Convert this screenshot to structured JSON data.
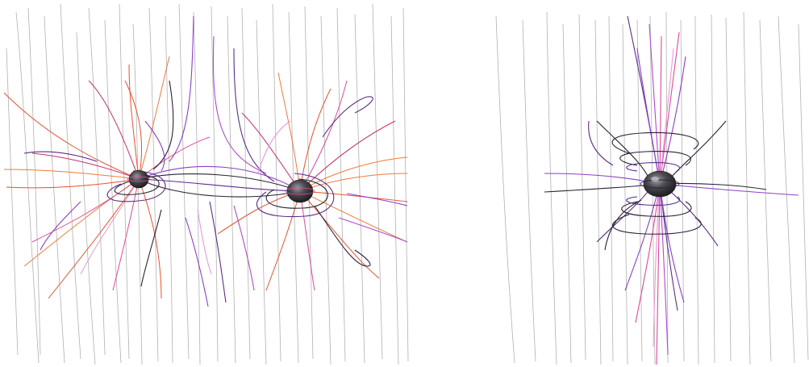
{
  "figure": {
    "background": "#ffffff",
    "panels": [
      {
        "id": "left",
        "description_name": "binary-field-lines-panel",
        "bodies": 2,
        "colors": {
          "vertical_lines": "#a9a9a9",
          "sphere": "#2e2e32",
          "sphere_highlight": "#8c8c92",
          "line_palette": [
            "#e8502f",
            "#f07a3a",
            "#c8306a",
            "#e04a92",
            "#b04ad0",
            "#8c3fc8",
            "#5a2f86",
            "#2a2236",
            "#e79ad8"
          ]
        }
      },
      {
        "id": "right",
        "description_name": "single-body-field-lines-panel",
        "bodies": 1,
        "colors": {
          "vertical_lines": "#a9a9a9",
          "sphere": "#2e2e32",
          "sphere_highlight": "#8c8c92",
          "line_palette": [
            "#b04ad0",
            "#8c3fc8",
            "#5a2f86",
            "#2a2236",
            "#e04a92",
            "#e79ad8"
          ]
        }
      }
    ]
  }
}
